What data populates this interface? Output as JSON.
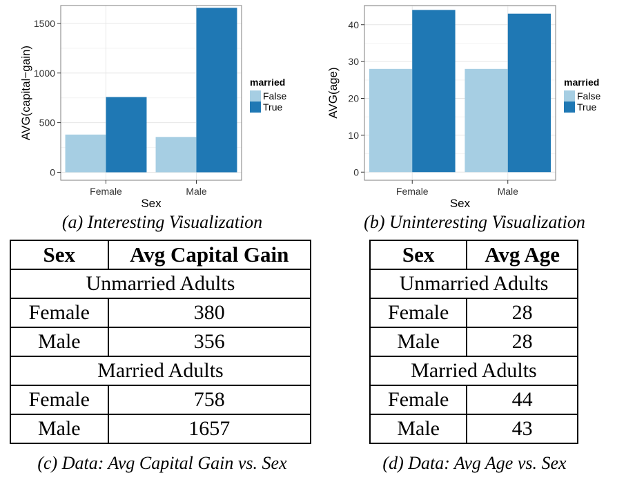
{
  "chart_data": [
    {
      "type": "bar",
      "categories": [
        "Female",
        "Male"
      ],
      "series": [
        {
          "name": "False",
          "values": [
            380,
            356
          ]
        },
        {
          "name": "True",
          "values": [
            758,
            1657
          ]
        }
      ],
      "xlabel": "Sex",
      "ylabel": "AVG(capital−gain)",
      "ylim": [
        -80,
        1680
      ],
      "yticks": [
        0,
        500,
        1000,
        1500
      ],
      "legend_title": "married",
      "legend_position": "right",
      "grid": true,
      "colors": {
        "False": "#a6cee3",
        "True": "#1f78b4"
      }
    },
    {
      "type": "bar",
      "categories": [
        "Female",
        "Male"
      ],
      "series": [
        {
          "name": "False",
          "values": [
            28,
            28
          ]
        },
        {
          "name": "True",
          "values": [
            44,
            43
          ]
        }
      ],
      "xlabel": "Sex",
      "ylabel": "AVG(age)",
      "ylim": [
        -2.2,
        45.2
      ],
      "yticks": [
        0,
        10,
        20,
        30,
        40
      ],
      "legend_title": "married",
      "legend_position": "right",
      "grid": true,
      "colors": {
        "False": "#a6cee3",
        "True": "#1f78b4"
      }
    }
  ],
  "captions": {
    "a": "(a) Interesting Visualization",
    "b": "(b) Uninteresting Visualization",
    "c": "(c) Data: Avg Capital Gain vs. Sex",
    "d": "(d) Data: Avg Age vs. Sex"
  },
  "tables": [
    {
      "headers": [
        "Sex",
        "Avg Capital Gain"
      ],
      "groups": [
        {
          "label": "Unmarried Adults",
          "rows": [
            [
              "Female",
              "380"
            ],
            [
              "Male",
              "356"
            ]
          ]
        },
        {
          "label": "Married Adults",
          "rows": [
            [
              "Female",
              "758"
            ],
            [
              "Male",
              "1657"
            ]
          ]
        }
      ]
    },
    {
      "headers": [
        "Sex",
        "Avg Age"
      ],
      "groups": [
        {
          "label": "Unmarried Adults",
          "rows": [
            [
              "Female",
              "28"
            ],
            [
              "Male",
              "28"
            ]
          ]
        },
        {
          "label": "Married Adults",
          "rows": [
            [
              "Female",
              "44"
            ],
            [
              "Male",
              "43"
            ]
          ]
        }
      ]
    }
  ]
}
